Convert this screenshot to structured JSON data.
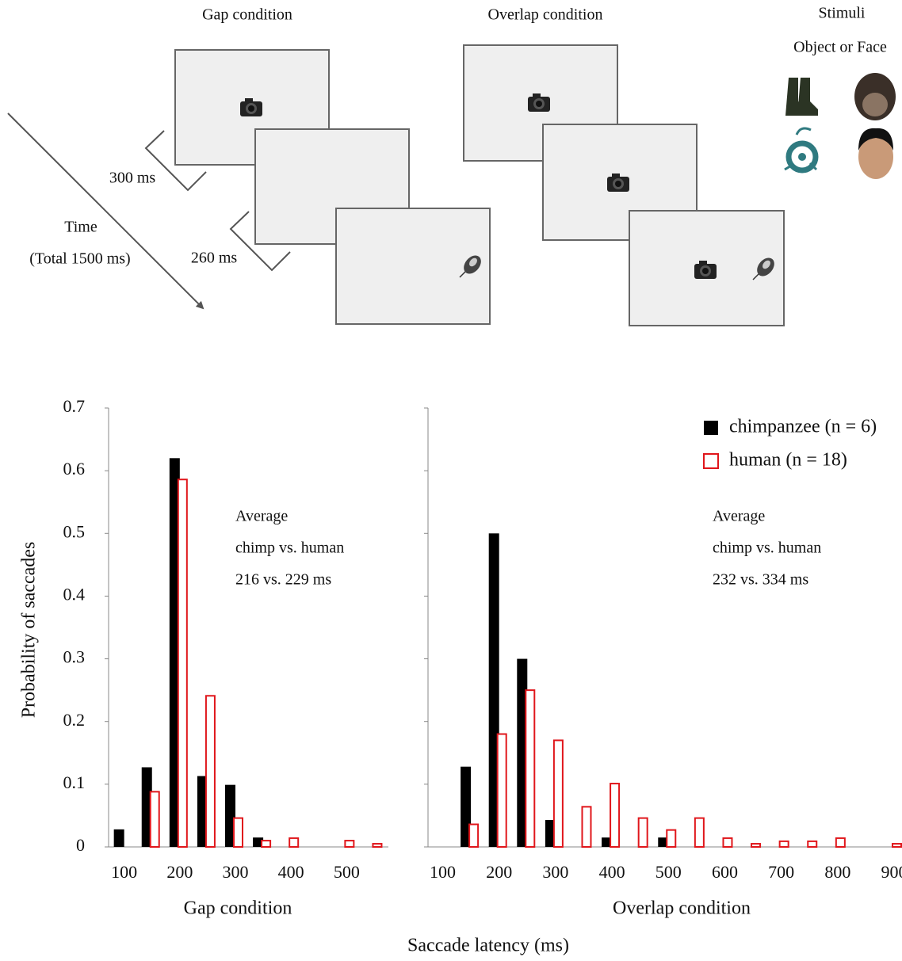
{
  "diagram": {
    "gap_title": "Gap condition",
    "overlap_title": "Overlap condition",
    "stimuli_title": "Stimuli",
    "stimuli_subtitle": "Object or Face",
    "gap_interval": "300 ms",
    "overlap_interval": "260 ms",
    "time_label": "Time",
    "time_total": "(Total 1500 ms)"
  },
  "figure": {
    "xlabel": "Saccade latency (ms)",
    "ylabel": "Probability of saccades"
  },
  "chart_data": [
    {
      "type": "bar",
      "xlabel": "Gap condition",
      "x": [
        100,
        150,
        200,
        250,
        300,
        350,
        400,
        450,
        500,
        550
      ],
      "series": [
        {
          "name": "chimpanzee (n = 6)",
          "color": "#000000",
          "hollow": false,
          "values": [
            0.028,
            0.127,
            0.62,
            0.113,
            0.099,
            0.015,
            0,
            0,
            0,
            0
          ]
        },
        {
          "name": "human (n = 18)",
          "color": "#e0161b",
          "hollow": true,
          "values": [
            0,
            0.088,
            0.586,
            0.241,
            0.046,
            0.01,
            0.014,
            0,
            0.01,
            0.005
          ]
        }
      ],
      "xlim": [
        72,
        575
      ],
      "xticks": [
        100,
        200,
        300,
        400,
        500
      ],
      "ylim": [
        0,
        0.7
      ],
      "yticks": [
        0,
        0.1,
        0.2,
        0.3,
        0.4,
        0.5,
        0.6,
        0.7
      ],
      "annotations": [
        "Average",
        "chimp vs. human",
        "216 vs. 229 ms"
      ]
    },
    {
      "type": "bar",
      "xlabel": "Overlap condition",
      "x": [
        150,
        200,
        250,
        300,
        350,
        400,
        450,
        500,
        550,
        600,
        650,
        700,
        750,
        800,
        850,
        900
      ],
      "series": [
        {
          "name": "chimpanzee (n = 6)",
          "color": "#000000",
          "hollow": false,
          "values": [
            0.128,
            0.5,
            0.3,
            0.043,
            0,
            0.015,
            0,
            0.015,
            0,
            0,
            0,
            0,
            0,
            0,
            0,
            0
          ]
        },
        {
          "name": "human (n = 18)",
          "color": "#e0161b",
          "hollow": true,
          "values": [
            0.036,
            0.18,
            0.25,
            0.17,
            0.064,
            0.101,
            0.046,
            0.027,
            0.046,
            0.014,
            0.005,
            0.009,
            0.009,
            0.014,
            0,
            0.005
          ]
        }
      ],
      "xlim": [
        74,
        914
      ],
      "xticks": [
        100,
        200,
        300,
        400,
        500,
        600,
        700,
        800,
        900
      ],
      "ylim": [
        0,
        0.7
      ],
      "yticks": [
        0,
        0.1,
        0.2,
        0.3,
        0.4,
        0.5,
        0.6,
        0.7
      ],
      "legend": "upper right",
      "annotations": [
        "Average",
        "chimp vs. human",
        "232 vs. 334 ms"
      ]
    }
  ]
}
